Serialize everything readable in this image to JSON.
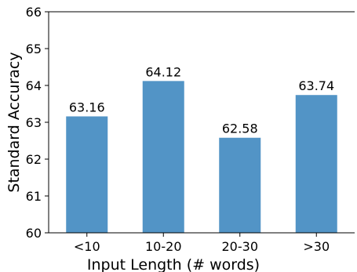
{
  "chart_data": {
    "type": "bar",
    "categories": [
      "<10",
      "10-20",
      "20-30",
      ">30"
    ],
    "values": [
      63.16,
      64.12,
      62.58,
      63.74
    ],
    "value_labels": [
      "63.16",
      "64.12",
      "62.58",
      "63.74"
    ],
    "xlabel": "Input Length (# words)",
    "ylabel": "Standard Accuracy",
    "ylim": [
      60,
      66
    ],
    "yticks": [
      60,
      61,
      62,
      63,
      64,
      65,
      66
    ],
    "ytick_labels": [
      "60",
      "61",
      "62",
      "63",
      "64",
      "65",
      "66"
    ],
    "bar_color": "#5294c6",
    "grid": false,
    "legend": "none"
  }
}
